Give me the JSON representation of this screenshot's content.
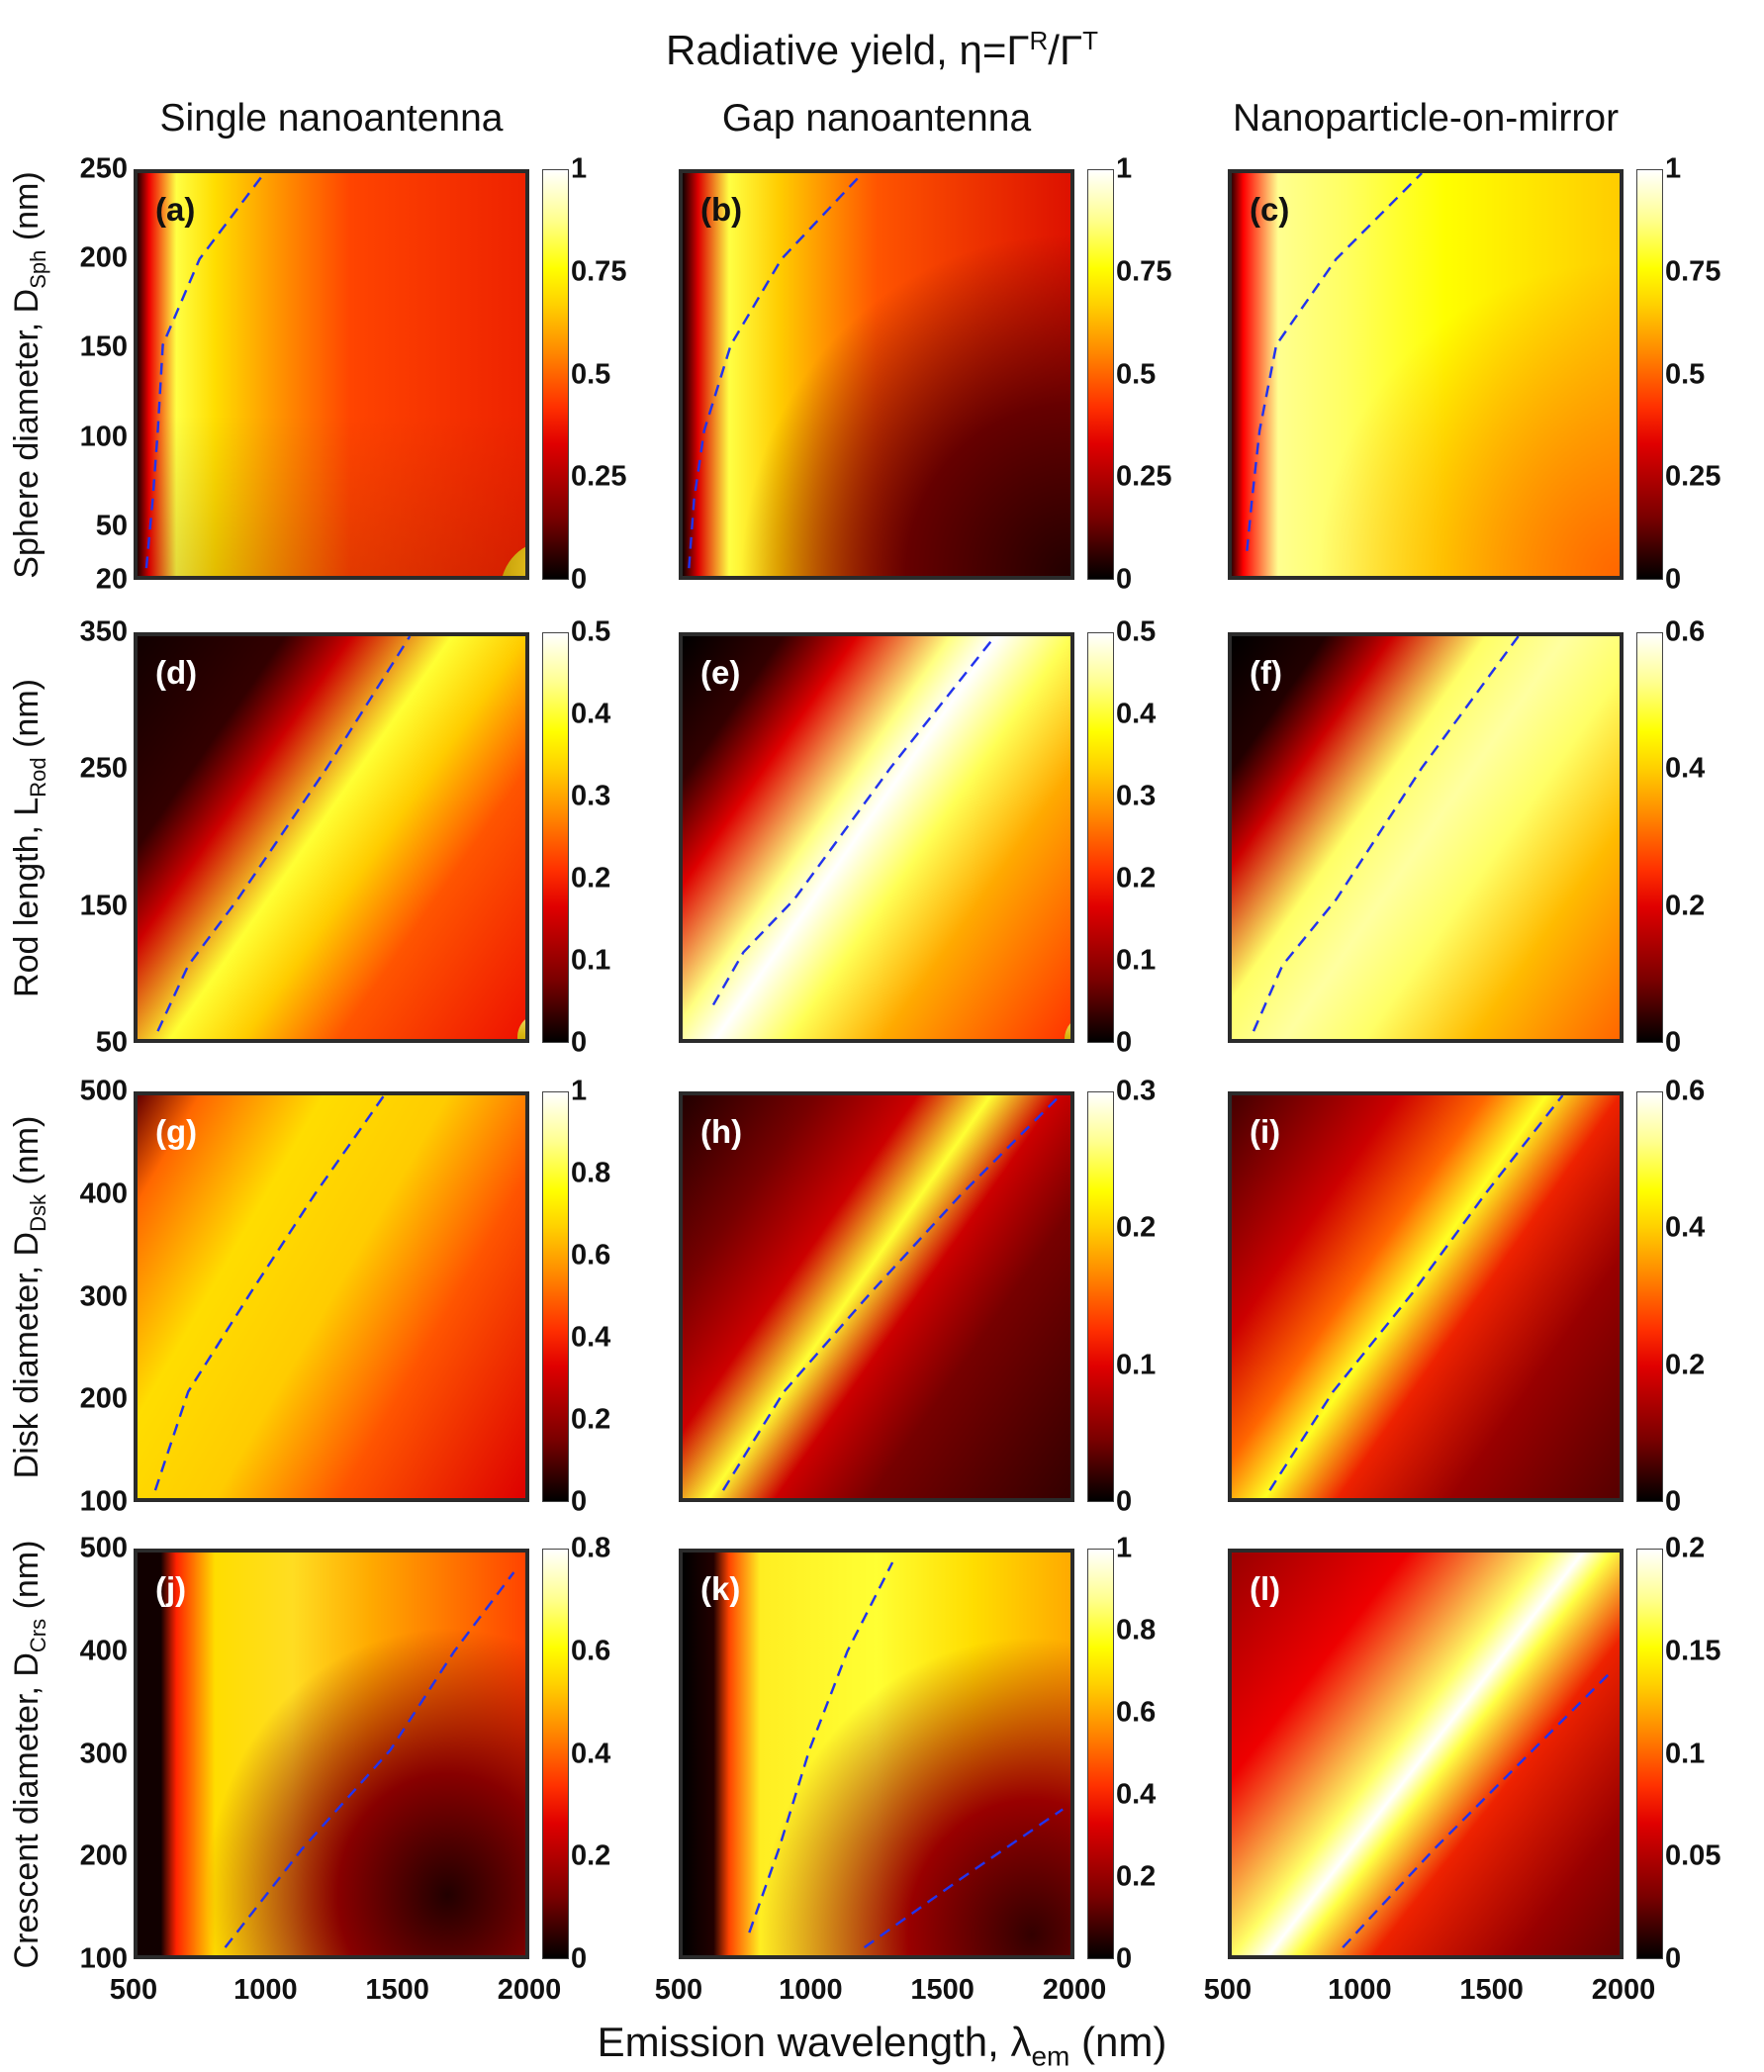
{
  "title": {
    "main": "Radiative yield, η=Γ",
    "sup1": "R",
    "mid": "/Γ",
    "sup2": "T"
  },
  "columns": [
    "Single nanoantenna",
    "Gap nanoantenna",
    "Nanoparticle-on-mirror"
  ],
  "rows": [
    {
      "ylabel": "Sphere diameter, D",
      "ysub": "Sph",
      "yunit": " (nm)",
      "yticks": [
        "20",
        "50",
        "100",
        "150",
        "200",
        "250"
      ]
    },
    {
      "ylabel": "Rod length, L",
      "ysub": "Rod",
      "yunit": " (nm)",
      "yticks": [
        "50",
        "150",
        "250",
        "350"
      ]
    },
    {
      "ylabel": "Disk diameter, D",
      "ysub": "Dsk",
      "yunit": " (nm)",
      "yticks": [
        "100",
        "200",
        "300",
        "400",
        "500"
      ]
    },
    {
      "ylabel": "Crescent diameter, D",
      "ysub": "Crs",
      "yunit": " (nm)",
      "yticks": [
        "100",
        "200",
        "300",
        "400",
        "500"
      ]
    }
  ],
  "xlabel": {
    "main": "Emission wavelength, λ",
    "sub": "em",
    "unit": " (nm)"
  },
  "xticks": [
    "500",
    "1000",
    "1500",
    "2000"
  ],
  "colors": {
    "dashed_line": "#2233ee",
    "colormap": "hot"
  },
  "chart_data": {
    "type": "heatmap",
    "title": "Radiative yield, η=Γ^R/Γ^T",
    "xlabel": "Emission wavelength, λem (nm)",
    "xlim": [
      500,
      2000
    ],
    "panels": [
      {
        "label": "(a)",
        "row": 0,
        "col": 0,
        "ylim": [
          20,
          250
        ],
        "cbar_ticks": [
          "0",
          "0.25",
          "0.5",
          "0.75",
          "1"
        ],
        "clim": [
          0,
          1
        ],
        "resonance_line": [
          [
            535,
            20
          ],
          [
            560,
            60
          ],
          [
            580,
            100
          ],
          [
            600,
            150
          ],
          [
            745,
            200
          ],
          [
            1000,
            250
          ]
        ]
      },
      {
        "label": "(b)",
        "row": 0,
        "col": 1,
        "ylim": [
          20,
          250
        ],
        "cbar_ticks": [
          "0",
          "0.25",
          "0.5",
          "0.75",
          "1"
        ],
        "clim": [
          0,
          1
        ],
        "resonance_line": [
          [
            525,
            20
          ],
          [
            545,
            60
          ],
          [
            585,
            100
          ],
          [
            690,
            150
          ],
          [
            890,
            200
          ],
          [
            1210,
            250
          ]
        ]
      },
      {
        "label": "(c)",
        "row": 0,
        "col": 2,
        "ylim": [
          20,
          250
        ],
        "cbar_ticks": [
          "0",
          "0.25",
          "0.5",
          "0.75",
          "1"
        ],
        "clim": [
          0,
          1
        ],
        "resonance_line": [
          [
            560,
            30
          ],
          [
            580,
            60
          ],
          [
            610,
            100
          ],
          [
            676,
            150
          ],
          [
            912,
            200
          ],
          [
            1250,
            250
          ]
        ]
      },
      {
        "label": "(d)",
        "row": 1,
        "col": 0,
        "ylim": [
          50,
          350
        ],
        "cbar_ticks": [
          "0",
          "0.1",
          "0.2",
          "0.3",
          "0.4",
          "0.5"
        ],
        "clim": [
          0,
          0.5
        ],
        "resonance_line": [
          [
            580,
            50
          ],
          [
            700,
            100
          ],
          [
            895,
            150
          ],
          [
            1247,
            250
          ],
          [
            1575,
            350
          ]
        ]
      },
      {
        "label": "(e)",
        "row": 1,
        "col": 1,
        "ylim": [
          50,
          350
        ],
        "cbar_ticks": [
          "0",
          "0.1",
          "0.2",
          "0.3",
          "0.4",
          "0.5"
        ],
        "clim": [
          0,
          0.5
        ],
        "resonance_line": [
          [
            621,
            70
          ],
          [
            740,
            110
          ],
          [
            940,
            150
          ],
          [
            1320,
            250
          ],
          [
            1733,
            350
          ]
        ]
      },
      {
        "label": "(f)",
        "row": 1,
        "col": 2,
        "ylim": [
          50,
          350
        ],
        "cbar_ticks": [
          "0",
          "0.2",
          "0.4",
          "0.6"
        ],
        "clim": [
          0,
          0.6
        ],
        "resonance_line": [
          [
            586,
            50
          ],
          [
            700,
            100
          ],
          [
            912,
            150
          ],
          [
            1250,
            250
          ],
          [
            1631,
            350
          ]
        ]
      },
      {
        "label": "(g)",
        "row": 2,
        "col": 0,
        "ylim": [
          100,
          500
        ],
        "cbar_ticks": [
          "0",
          "0.2",
          "0.4",
          "0.6",
          "0.8",
          "1"
        ],
        "clim": [
          0,
          1
        ],
        "resonance_line": [
          [
            570,
            100
          ],
          [
            700,
            200
          ],
          [
            946,
            300
          ],
          [
            1200,
            400
          ],
          [
            1473,
            500
          ]
        ]
      },
      {
        "label": "(h)",
        "row": 2,
        "col": 1,
        "ylim": [
          100,
          500
        ],
        "cbar_ticks": [
          "0",
          "0.1",
          "0.2",
          "0.3"
        ],
        "clim": [
          0,
          0.3
        ],
        "resonance_line": [
          [
            660,
            100
          ],
          [
            900,
            200
          ],
          [
            1242,
            300
          ],
          [
            1600,
            400
          ],
          [
            1990,
            500
          ]
        ]
      },
      {
        "label": "(i)",
        "row": 2,
        "col": 2,
        "ylim": [
          100,
          500
        ],
        "cbar_ticks": [
          "0",
          "0.2",
          "0.4",
          "0.6"
        ],
        "clim": [
          0,
          0.6
        ],
        "resonance_line": [
          [
            650,
            100
          ],
          [
            900,
            200
          ],
          [
            1214,
            300
          ],
          [
            1500,
            400
          ],
          [
            1806,
            500
          ]
        ]
      },
      {
        "label": "(j)",
        "row": 3,
        "col": 0,
        "ylim": [
          100,
          500
        ],
        "cbar_ticks": [
          "0",
          "0.2",
          "0.4",
          "0.6",
          "0.8"
        ],
        "clim": [
          0,
          0.8
        ],
        "resonance_line": [
          [
            846,
            100
          ],
          [
            1150,
            200
          ],
          [
            1498,
            300
          ],
          [
            1750,
            400
          ],
          [
            1985,
            480
          ]
        ]
      },
      {
        "label": "(k)",
        "row": 3,
        "col": 1,
        "ylim": [
          100,
          500
        ],
        "cbar_ticks": [
          "0",
          "0.2",
          "0.4",
          "0.6",
          "0.8",
          "1"
        ],
        "clim": [
          0,
          1
        ],
        "resonance_line": [
          [
            763,
            115
          ],
          [
            880,
            200
          ],
          [
            1000,
            300
          ],
          [
            1150,
            400
          ],
          [
            1328,
            490
          ]
        ],
        "resonance_line_2": [
          [
            1217,
            100
          ],
          [
            1600,
            170
          ],
          [
            2000,
            240
          ]
        ]
      },
      {
        "label": "(l)",
        "row": 3,
        "col": 2,
        "ylim": [
          100,
          500
        ],
        "cbar_ticks": [
          "0",
          "0.05",
          "0.1",
          "0.15",
          "0.2"
        ],
        "clim": [
          0,
          0.2
        ],
        "resonance_line": [
          [
            938,
            100
          ],
          [
            1300,
            200
          ],
          [
            1650,
            290
          ],
          [
            2000,
            380
          ]
        ]
      }
    ]
  }
}
